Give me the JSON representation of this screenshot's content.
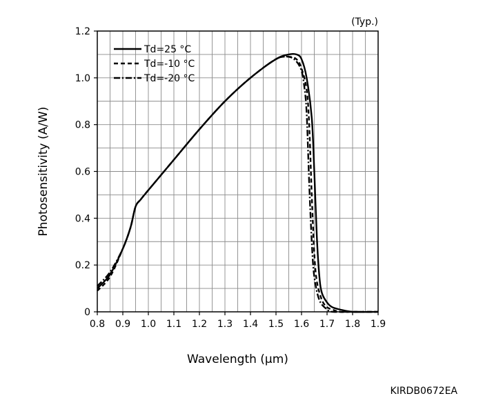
{
  "chart_data": {
    "type": "line",
    "title": "",
    "note": "(Typ.)",
    "figure_id": "KIRDB0672EA",
    "xlabel": "Wavelength (µm)",
    "ylabel": "Photosensitivity (A/W)",
    "xlim": [
      0.8,
      1.9
    ],
    "ylim": [
      0,
      1.2
    ],
    "xticks": [
      "0.8",
      "0.9",
      "1.0",
      "1.1",
      "1.2",
      "1.3",
      "1.4",
      "1.5",
      "1.6",
      "1.7",
      "1.8",
      "1.9"
    ],
    "yticks": [
      "0",
      "0.2",
      "0.4",
      "0.6",
      "0.8",
      "1.0",
      "1.2"
    ],
    "x_minor_step": 0.05,
    "y_minor_step": 0.1,
    "grid": true,
    "legend_position": "top-left",
    "series": [
      {
        "name": "Td=25 °C",
        "style": "solid",
        "x": [
          0.8,
          0.85,
          0.9,
          0.93,
          0.95,
          0.97,
          1.0,
          1.1,
          1.2,
          1.3,
          1.4,
          1.5,
          1.55,
          1.58,
          1.6,
          1.62,
          1.64,
          1.65,
          1.66,
          1.67,
          1.68,
          1.7,
          1.72,
          1.75,
          1.8,
          1.9
        ],
        "y": [
          0.1,
          0.16,
          0.27,
          0.36,
          0.45,
          0.48,
          0.52,
          0.65,
          0.78,
          0.9,
          1.0,
          1.08,
          1.1,
          1.1,
          1.08,
          1.0,
          0.83,
          0.6,
          0.32,
          0.15,
          0.08,
          0.04,
          0.02,
          0.01,
          0.0,
          0.0
        ]
      },
      {
        "name": "Td=-10 °C",
        "style": "dashed",
        "x": [
          0.8,
          0.85,
          0.9,
          0.93,
          0.95,
          0.97,
          1.0,
          1.1,
          1.2,
          1.3,
          1.4,
          1.5,
          1.55,
          1.58,
          1.6,
          1.62,
          1.63,
          1.64,
          1.65,
          1.66,
          1.68,
          1.7,
          1.72,
          1.75,
          1.8,
          1.9
        ],
        "y": [
          0.09,
          0.15,
          0.27,
          0.36,
          0.45,
          0.48,
          0.52,
          0.65,
          0.78,
          0.9,
          1.0,
          1.08,
          1.09,
          1.08,
          1.04,
          0.95,
          0.8,
          0.5,
          0.25,
          0.13,
          0.05,
          0.02,
          0.01,
          0.0,
          0.0,
          0.0
        ]
      },
      {
        "name": "Td=-20 °C",
        "style": "dashdot",
        "x": [
          0.8,
          0.85,
          0.9,
          0.93,
          0.95,
          0.97,
          1.0,
          1.1,
          1.2,
          1.3,
          1.4,
          1.5,
          1.55,
          1.58,
          1.6,
          1.61,
          1.62,
          1.63,
          1.64,
          1.65,
          1.67,
          1.7,
          1.72,
          1.75,
          1.8,
          1.9
        ],
        "y": [
          0.11,
          0.17,
          0.27,
          0.36,
          0.45,
          0.48,
          0.52,
          0.65,
          0.78,
          0.9,
          1.0,
          1.08,
          1.09,
          1.07,
          1.03,
          0.97,
          0.85,
          0.55,
          0.3,
          0.15,
          0.05,
          0.01,
          0.0,
          0.0,
          0.0,
          0.0
        ]
      }
    ]
  }
}
